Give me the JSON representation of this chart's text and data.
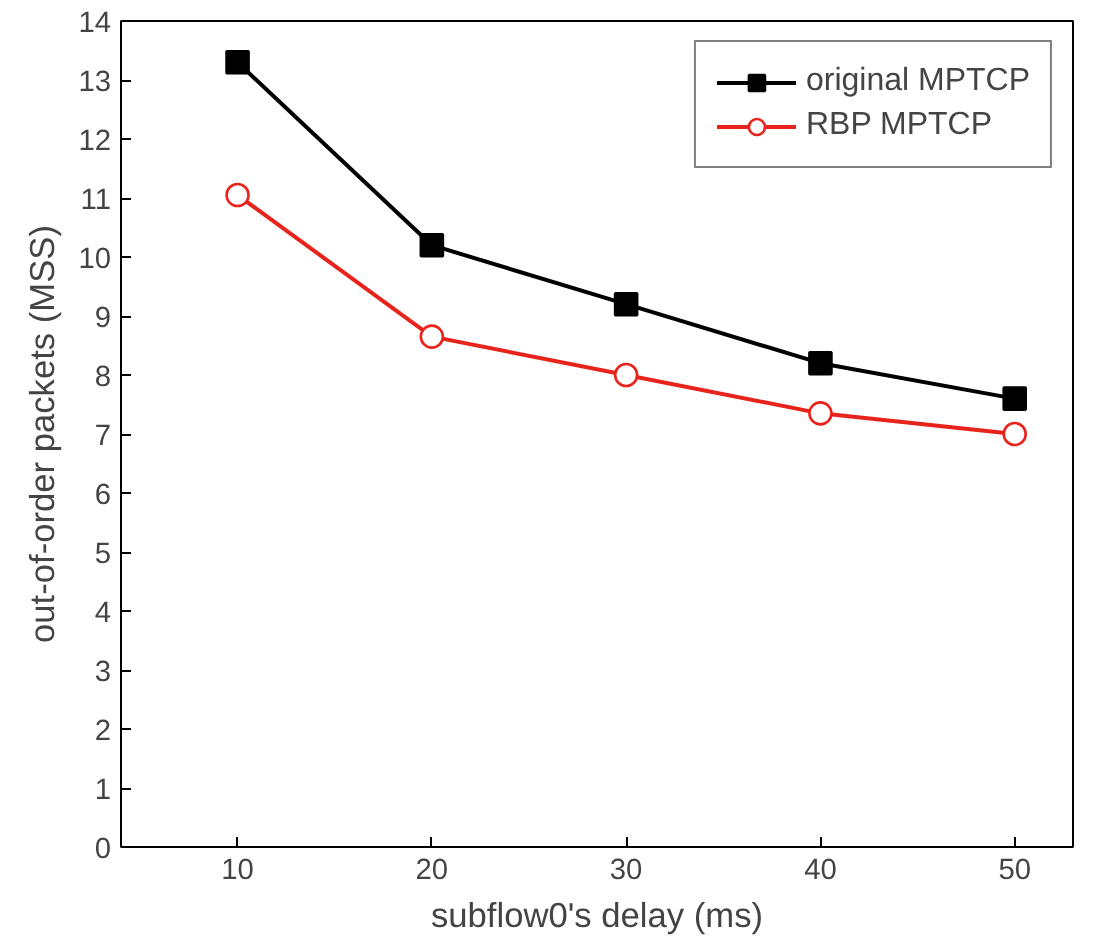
{
  "chart_data": {
    "type": "line",
    "xlabel": "subflow0's delay (ms)",
    "ylabel": "out-of-order packets (MSS)",
    "x": [
      10,
      20,
      30,
      40,
      50
    ],
    "series": [
      {
        "name": "original MPTCP",
        "color": "#000000",
        "values": [
          13.3,
          10.2,
          9.2,
          8.2,
          7.6
        ],
        "marker": "square"
      },
      {
        "name": "RBP MPTCP",
        "color": "#e8231b",
        "values": [
          11.05,
          8.65,
          8.0,
          7.35,
          7.0
        ],
        "marker": "circle"
      }
    ],
    "xlim": [
      4,
      53
    ],
    "ylim": [
      0,
      14
    ],
    "xticks": [
      10,
      20,
      30,
      40,
      50
    ],
    "yticks": [
      0,
      1,
      2,
      3,
      4,
      5,
      6,
      7,
      8,
      9,
      10,
      11,
      12,
      13,
      14
    ],
    "grid": false,
    "legend": "top right",
    "line_style": "solid"
  }
}
